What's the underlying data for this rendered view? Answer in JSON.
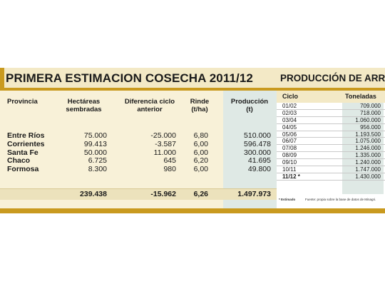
{
  "title": "PRIMERA ESTIMACION COSECHA 2011/12",
  "side_title": "PRODUCCIÓN DE ARROZ",
  "main_table": {
    "headers": [
      "Provincia",
      "Hectáreas sembradas",
      "Diferencia ciclo anterior",
      "Rinde (t/ha)",
      "Producción (t)"
    ],
    "rows": [
      [
        "Entre Ríos",
        "75.000",
        "-25.000",
        "6,80",
        "510.000"
      ],
      [
        "Corrientes",
        "99.413",
        "-3.587",
        "6,00",
        "596.478"
      ],
      [
        "Santa Fe",
        "50.000",
        "11.000",
        "6,00",
        "300.000"
      ],
      [
        "Chaco",
        "6.725",
        "645",
        "6,20",
        "41.695"
      ],
      [
        "Formosa",
        "8.300",
        "980",
        "6,00",
        "49.800"
      ]
    ],
    "totals": [
      "239.438",
      "-15.962",
      "6,26",
      "1.497.973"
    ]
  },
  "side_table": {
    "headers": [
      "Ciclo",
      "Toneladas"
    ],
    "rows": [
      [
        "01/02",
        "709.000"
      ],
      [
        "02/03",
        "718.000"
      ],
      [
        "03/04",
        "1.060.000"
      ],
      [
        "04/05",
        "956.000"
      ],
      [
        "05/06",
        "1.193.500"
      ],
      [
        "06/07",
        "1.075.000"
      ],
      [
        "07/08",
        "1.246.000"
      ],
      [
        "08/09",
        "1.335.000"
      ],
      [
        "09/10",
        "1.240.000"
      ],
      [
        "10/11",
        "1.747.000"
      ],
      [
        "11/12 *",
        "1.430.000"
      ]
    ],
    "footnote": "* Estimado",
    "source": "Fuente: propia sobre la base de datos de Minagri."
  },
  "colors": {
    "gold": "#c99a1f",
    "cream": "#f8f1d8",
    "highlight": "#dfe9e5"
  }
}
